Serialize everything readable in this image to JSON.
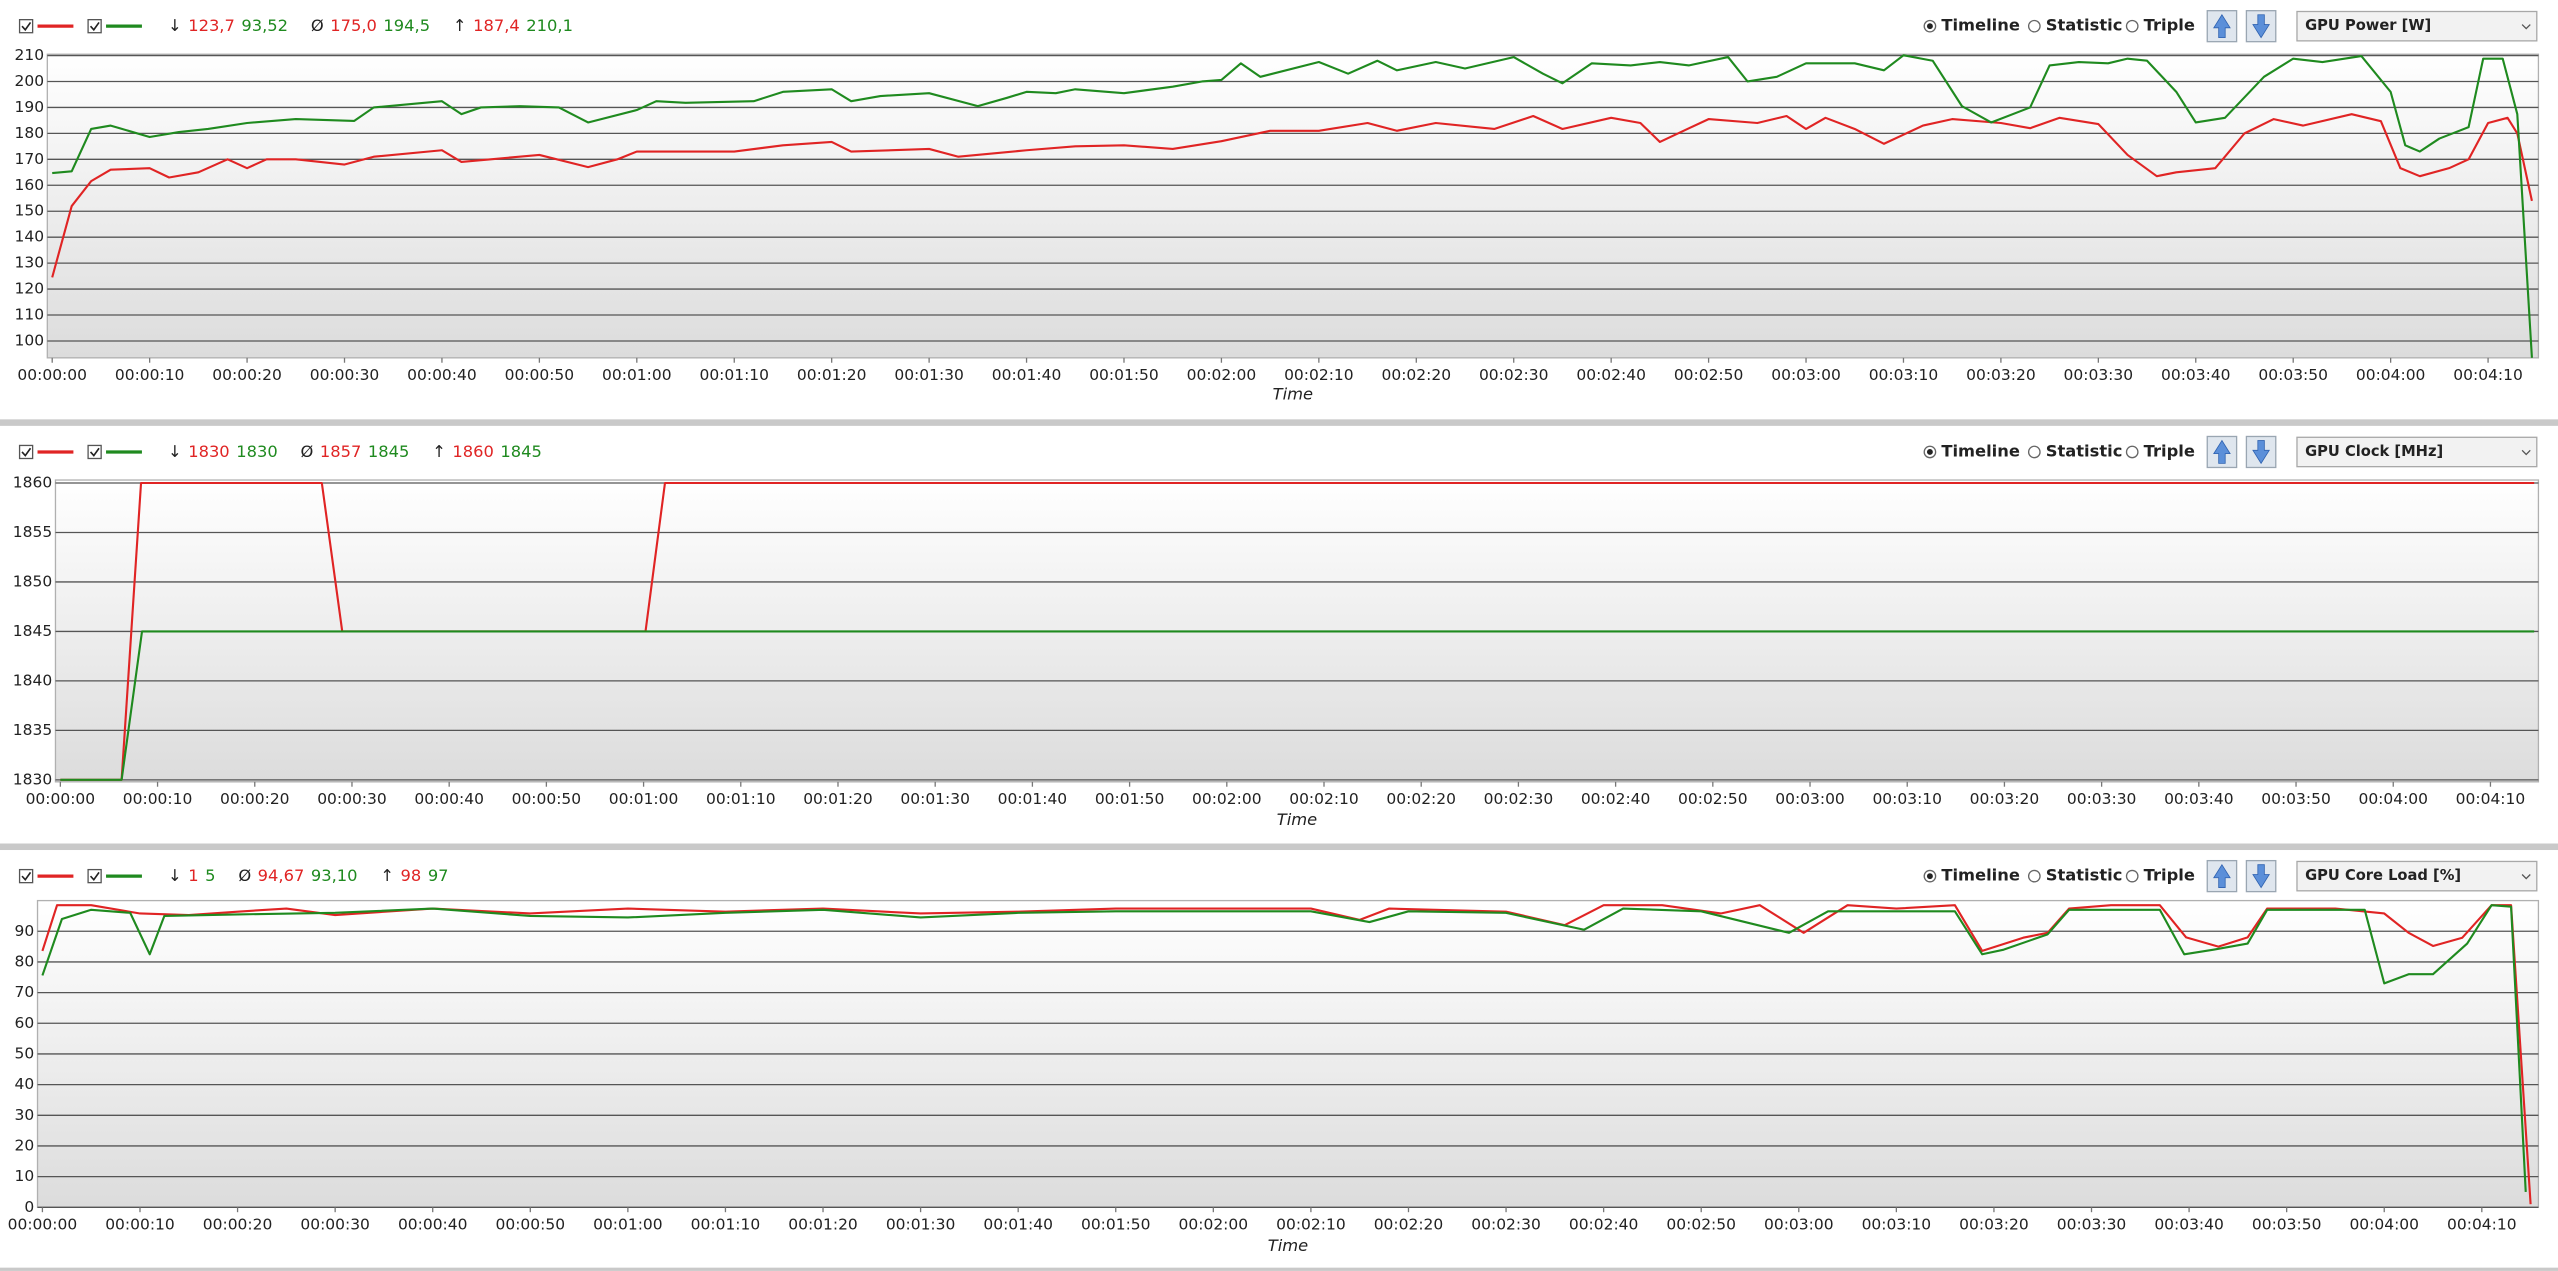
{
  "chart_data": [
    {
      "type": "line",
      "xlabel": "Time",
      "metric": "GPU Power [W]",
      "view_options": [
        "Timeline",
        "Statistic",
        "Triple"
      ],
      "selected_view": "Timeline",
      "stats": [
        {
          "symbol": "↓",
          "values": [
            "123,7",
            "93,52"
          ]
        },
        {
          "symbol": "Ø",
          "values": [
            "175,0",
            "194,5"
          ]
        },
        {
          "symbol": "↑",
          "values": [
            "187,4",
            "210,1"
          ]
        }
      ],
      "xlim": [
        0,
        255
      ],
      "ylim": [
        93.5,
        210.5
      ],
      "yticks": [
        100,
        110,
        120,
        130,
        140,
        150,
        160,
        170,
        180,
        190,
        200,
        210
      ],
      "xticks": [
        {
          "value": 0,
          "label": "00:00:00"
        },
        {
          "value": 10,
          "label": "00:00:10"
        },
        {
          "value": 20,
          "label": "00:00:20"
        },
        {
          "value": 30,
          "label": "00:00:30"
        },
        {
          "value": 40,
          "label": "00:00:40"
        },
        {
          "value": 50,
          "label": "00:00:50"
        },
        {
          "value": 60,
          "label": "00:01:00"
        },
        {
          "value": 70,
          "label": "00:01:10"
        },
        {
          "value": 80,
          "label": "00:01:20"
        },
        {
          "value": 90,
          "label": "00:01:30"
        },
        {
          "value": 100,
          "label": "00:01:40"
        },
        {
          "value": 110,
          "label": "00:01:50"
        },
        {
          "value": 120,
          "label": "00:02:00"
        },
        {
          "value": 130,
          "label": "00:02:10"
        },
        {
          "value": 140,
          "label": "00:02:20"
        },
        {
          "value": 150,
          "label": "00:02:30"
        },
        {
          "value": 160,
          "label": "00:02:40"
        },
        {
          "value": 170,
          "label": "00:02:50"
        },
        {
          "value": 180,
          "label": "00:03:00"
        },
        {
          "value": 190,
          "label": "00:03:10"
        },
        {
          "value": 200,
          "label": "00:03:20"
        },
        {
          "value": 210,
          "label": "00:03:30"
        },
        {
          "value": 220,
          "label": "00:03:40"
        },
        {
          "value": 230,
          "label": "00:03:50"
        },
        {
          "value": 240,
          "label": "00:04:00"
        },
        {
          "value": 250,
          "label": "00:04:10"
        }
      ],
      "series": [
        {
          "color": "#e02424",
          "x": [
            0,
            2,
            4,
            6,
            10,
            12,
            15,
            18,
            20,
            22,
            25,
            30,
            33,
            40,
            42,
            50,
            55,
            58,
            60,
            70,
            75,
            80,
            82,
            90,
            93,
            100,
            105,
            110,
            115,
            120,
            125,
            130,
            135,
            138,
            142,
            148,
            152,
            155,
            160,
            163,
            165,
            168,
            170,
            175,
            178,
            180,
            182,
            185,
            188,
            192,
            195,
            200,
            203,
            206,
            210,
            213,
            216,
            218,
            222,
            225,
            228,
            231,
            236,
            239,
            241,
            243,
            246,
            248,
            250,
            252,
            253,
            254.5
          ],
          "values": [
            124.5,
            152,
            161.6,
            166,
            166.6,
            163,
            165,
            170,
            166.6,
            170,
            170,
            168,
            171,
            173.5,
            169,
            171.7,
            167,
            170,
            173,
            173,
            175.4,
            176.7,
            173,
            174,
            171,
            173.5,
            175,
            175.4,
            174,
            177,
            181,
            181,
            184,
            181,
            184,
            181.7,
            186.7,
            181.7,
            186,
            184,
            176.7,
            182,
            185.5,
            184,
            186.7,
            181.7,
            186,
            181.7,
            176,
            183,
            185.5,
            184,
            182,
            186,
            183.6,
            171.7,
            163.5,
            165,
            166.6,
            180,
            185.5,
            183,
            187.4,
            184.7,
            166.6,
            163.5,
            166.6,
            170,
            184,
            186,
            180,
            154
          ]
        },
        {
          "color": "#1f8a1f",
          "x": [
            0,
            2,
            4,
            6,
            10,
            13,
            16,
            20,
            25,
            31,
            33,
            40,
            42,
            44,
            48,
            52,
            55,
            60,
            62,
            65,
            72,
            75,
            80,
            82,
            85,
            90,
            95,
            98,
            100,
            103,
            105,
            110,
            115,
            118,
            120,
            122,
            124,
            130,
            133,
            136,
            138,
            142,
            145,
            150,
            153,
            155,
            158,
            162,
            165,
            168,
            172,
            174,
            177,
            180,
            185,
            188,
            190,
            193,
            196,
            199,
            203,
            205,
            208,
            211,
            213,
            215,
            218,
            220,
            223,
            227,
            230,
            233,
            237,
            240,
            241.5,
            243,
            245,
            248,
            249.5,
            251.5,
            253,
            254.5
          ],
          "values": [
            164.7,
            165.4,
            181.7,
            183,
            178.6,
            180.5,
            181.7,
            184,
            185.5,
            184.8,
            190,
            192.4,
            187.4,
            190,
            190.5,
            190,
            184.2,
            189,
            192.4,
            191.8,
            192.4,
            196,
            197,
            192.4,
            194.4,
            195.5,
            190.5,
            193.7,
            196,
            195.5,
            197,
            195.5,
            198,
            200,
            200.6,
            207,
            201.8,
            207.5,
            203,
            208,
            204.3,
            207.5,
            205,
            209.4,
            203,
            199.3,
            207,
            206.2,
            207.5,
            206.2,
            209.4,
            200,
            201.8,
            207,
            207,
            204.3,
            210.1,
            208,
            190.5,
            184.2,
            190,
            206.2,
            207.5,
            207,
            208.8,
            208,
            196,
            184.2,
            186,
            201.8,
            208.8,
            207.5,
            209.8,
            196,
            175.4,
            173,
            178,
            182.4,
            208.8,
            208.8,
            187.4,
            93.5
          ]
        }
      ]
    },
    {
      "type": "line",
      "xlabel": "Time",
      "metric": "GPU Clock [MHz]",
      "view_options": [
        "Timeline",
        "Statistic",
        "Triple"
      ],
      "selected_view": "Timeline",
      "stats": [
        {
          "symbol": "↓",
          "values": [
            "1830",
            "1830"
          ]
        },
        {
          "symbol": "Ø",
          "values": [
            "1857",
            "1845"
          ]
        },
        {
          "symbol": "↑",
          "values": [
            "1860",
            "1845"
          ]
        }
      ],
      "xlim": [
        0,
        254.6
      ],
      "ylim": [
        1829.8,
        1860.3
      ],
      "yticks": [
        1830,
        1835,
        1840,
        1845,
        1850,
        1855,
        1860
      ],
      "xticks": [
        {
          "value": 0,
          "label": "00:00:00"
        },
        {
          "value": 10,
          "label": "00:00:10"
        },
        {
          "value": 20,
          "label": "00:00:20"
        },
        {
          "value": 30,
          "label": "00:00:30"
        },
        {
          "value": 40,
          "label": "00:00:40"
        },
        {
          "value": 50,
          "label": "00:00:50"
        },
        {
          "value": 60,
          "label": "00:01:00"
        },
        {
          "value": 70,
          "label": "00:01:10"
        },
        {
          "value": 80,
          "label": "00:01:20"
        },
        {
          "value": 90,
          "label": "00:01:30"
        },
        {
          "value": 100,
          "label": "00:01:40"
        },
        {
          "value": 110,
          "label": "00:01:50"
        },
        {
          "value": 120,
          "label": "00:02:00"
        },
        {
          "value": 130,
          "label": "00:02:10"
        },
        {
          "value": 140,
          "label": "00:02:20"
        },
        {
          "value": 150,
          "label": "00:02:30"
        },
        {
          "value": 160,
          "label": "00:02:40"
        },
        {
          "value": 170,
          "label": "00:02:50"
        },
        {
          "value": 180,
          "label": "00:03:00"
        },
        {
          "value": 190,
          "label": "00:03:10"
        },
        {
          "value": 200,
          "label": "00:03:20"
        },
        {
          "value": 210,
          "label": "00:03:30"
        },
        {
          "value": 220,
          "label": "00:03:40"
        },
        {
          "value": 230,
          "label": "00:03:50"
        },
        {
          "value": 240,
          "label": "00:04:00"
        },
        {
          "value": 250,
          "label": "00:04:10"
        }
      ],
      "series": [
        {
          "color": "#e02424",
          "x": [
            0,
            6.3,
            8.3,
            26.9,
            29,
            60.2,
            62.2,
            254.5
          ],
          "values": [
            1830,
            1830,
            1860,
            1860,
            1845,
            1845,
            1860,
            1860
          ]
        },
        {
          "color": "#1f8a1f",
          "x": [
            0,
            6.3,
            8.4,
            254.5
          ],
          "values": [
            1830,
            1830,
            1845,
            1845
          ]
        }
      ]
    },
    {
      "type": "line",
      "xlabel": "Time",
      "metric": "GPU Core Load [%]",
      "view_options": [
        "Timeline",
        "Statistic",
        "Triple"
      ],
      "selected_view": "Timeline",
      "stats": [
        {
          "symbol": "↓",
          "values": [
            "1",
            "5"
          ]
        },
        {
          "symbol": "Ø",
          "values": [
            "94,67",
            "93,10"
          ]
        },
        {
          "symbol": "↑",
          "values": [
            "98",
            "97"
          ]
        }
      ],
      "xlim": [
        0,
        255.3
      ],
      "ylim": [
        0,
        100
      ],
      "yticks": [
        0,
        10,
        20,
        30,
        40,
        50,
        60,
        70,
        80,
        90
      ],
      "xticks": [
        {
          "value": 0,
          "label": "00:00:00"
        },
        {
          "value": 10,
          "label": "00:00:10"
        },
        {
          "value": 20,
          "label": "00:00:20"
        },
        {
          "value": 30,
          "label": "00:00:30"
        },
        {
          "value": 40,
          "label": "00:00:40"
        },
        {
          "value": 50,
          "label": "00:00:50"
        },
        {
          "value": 60,
          "label": "00:01:00"
        },
        {
          "value": 70,
          "label": "00:01:10"
        },
        {
          "value": 80,
          "label": "00:01:20"
        },
        {
          "value": 90,
          "label": "00:01:30"
        },
        {
          "value": 100,
          "label": "00:01:40"
        },
        {
          "value": 110,
          "label": "00:01:50"
        },
        {
          "value": 120,
          "label": "00:02:00"
        },
        {
          "value": 130,
          "label": "00:02:10"
        },
        {
          "value": 140,
          "label": "00:02:20"
        },
        {
          "value": 150,
          "label": "00:02:30"
        },
        {
          "value": 160,
          "label": "00:02:40"
        },
        {
          "value": 170,
          "label": "00:02:50"
        },
        {
          "value": 180,
          "label": "00:03:00"
        },
        {
          "value": 190,
          "label": "00:03:10"
        },
        {
          "value": 200,
          "label": "00:03:20"
        },
        {
          "value": 210,
          "label": "00:03:30"
        },
        {
          "value": 220,
          "label": "00:03:40"
        },
        {
          "value": 230,
          "label": "00:03:50"
        },
        {
          "value": 240,
          "label": "00:04:00"
        },
        {
          "value": 250,
          "label": "00:04:10"
        }
      ],
      "series": [
        {
          "color": "#e02424",
          "x": [
            0,
            1.5,
            5,
            10,
            15,
            20,
            25,
            30,
            40,
            50,
            60,
            70,
            80,
            90,
            100,
            110,
            130,
            135,
            138,
            150,
            156,
            160,
            166,
            172,
            176,
            180.5,
            185,
            190,
            196,
            198.8,
            203,
            205.5,
            207.7,
            212,
            217,
            219.7,
            223,
            226,
            228,
            235,
            240,
            242.5,
            245,
            248,
            251,
            253,
            255
          ],
          "values": [
            83.6,
            98.5,
            98.5,
            95.8,
            95.3,
            96.4,
            97.4,
            95.3,
            97.4,
            95.8,
            97.4,
            96.4,
            97.4,
            95.8,
            96.4,
            97.4,
            97.4,
            93.7,
            97.4,
            96.4,
            92,
            98.5,
            98.5,
            95.8,
            98.5,
            89.5,
            98.5,
            97.4,
            98.5,
            83.6,
            87.9,
            89.5,
            97.4,
            98.5,
            98.5,
            88,
            85,
            88,
            97.4,
            97.4,
            95.8,
            89.5,
            85.2,
            87.9,
            98.5,
            98.5,
            1
          ]
        },
        {
          "color": "#1f8a1f",
          "x": [
            0,
            2,
            5,
            9,
            11,
            12.5,
            20,
            30,
            40,
            50,
            60,
            70,
            80,
            90,
            100,
            110,
            130,
            136,
            140,
            150,
            158,
            162,
            170,
            179,
            183,
            190,
            196,
            198.8,
            201,
            205.5,
            207.7,
            217,
            219.5,
            222.5,
            226,
            228,
            238,
            240,
            242.5,
            245,
            248.5,
            251,
            253,
            254.5
          ],
          "values": [
            75.6,
            94,
            97,
            96,
            82.5,
            95,
            95.5,
            96,
            97.4,
            95,
            94.5,
            96,
            97,
            94.5,
            96,
            96.5,
            96.5,
            93,
            96.5,
            96,
            90.5,
            97.4,
            96.5,
            89.5,
            96.5,
            96.5,
            96.5,
            82.5,
            84,
            89,
            97,
            97,
            82.5,
            84,
            86,
            97,
            97,
            73,
            76,
            76,
            86,
            98.5,
            98,
            5
          ]
        }
      ]
    }
  ]
}
